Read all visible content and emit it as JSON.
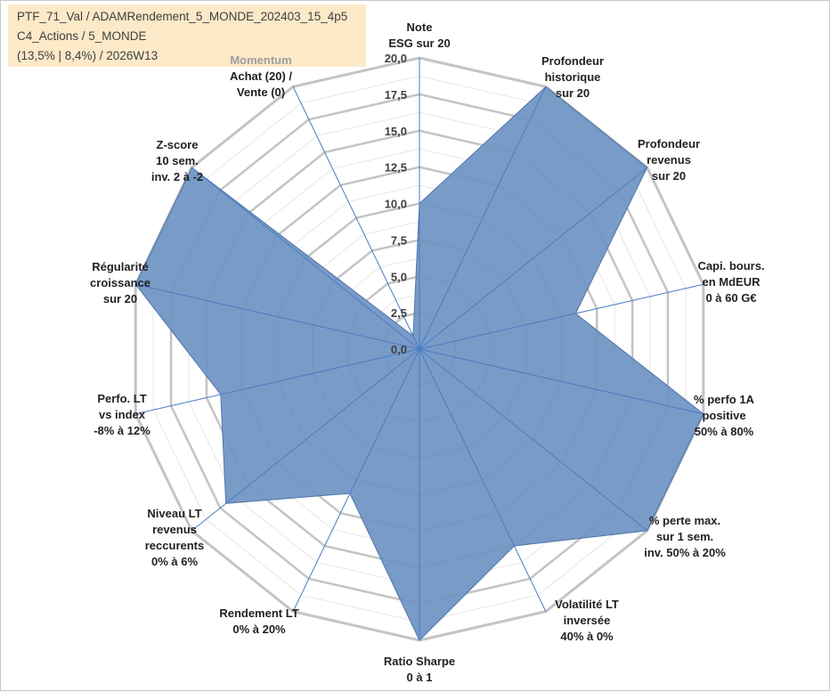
{
  "info": {
    "line1": "PTF_71_Val / ADAMRendement_5_MONDE_202403_15_4p5",
    "line2": "C4_Actions / 5_MONDE",
    "line3": "(13,5% | 8,4%) / 2026W13"
  },
  "colors": {
    "fill": "#6e93c3",
    "stroke": "#4f74aa",
    "grid": "#c4c4c4",
    "spoke": "#4a7cc4"
  },
  "chart_data": {
    "type": "radar",
    "title": "",
    "rmax": 20,
    "tick_values": [
      0,
      2.5,
      5,
      7.5,
      10,
      12.5,
      15,
      17.5,
      20
    ],
    "tick_labels": [
      "0,0",
      "2,5",
      "5,0",
      "7,5",
      "10,0",
      "12,5",
      "15,0",
      "17,5",
      "20,0"
    ],
    "axes": [
      {
        "label": [
          "Note",
          "ESG sur 20"
        ],
        "value": 10
      },
      {
        "label": [
          "Profondeur",
          "historique",
          "sur 20"
        ],
        "value": 20
      },
      {
        "label": [
          "Profondeur",
          "revenus",
          "sur 20"
        ],
        "value": 20
      },
      {
        "label": [
          "Capi. bours.",
          "en MdEUR",
          "0 à 60 G€"
        ],
        "value": 11
      },
      {
        "label": [
          "% perfo 1A",
          "positive",
          "50% à 80%"
        ],
        "value": 20
      },
      {
        "label": [
          "% perte max.",
          "sur 1 sem.",
          "inv. 50% à 20%"
        ],
        "value": 20
      },
      {
        "label": [
          "Volatilité LT",
          "inversée",
          "40% à 0%"
        ],
        "value": 15
      },
      {
        "label": [
          "Ratio Sharpe",
          "0 à 1"
        ],
        "value": 20
      },
      {
        "label": [
          "Rendement LT",
          "0% à 20%"
        ],
        "value": 11
      },
      {
        "label": [
          "Niveau LT",
          "revenus",
          "reccurents",
          "0% à 6%"
        ],
        "value": 17
      },
      {
        "label": [
          "Perfo. LT",
          "vs index",
          "-8% à 12%"
        ],
        "value": 14
      },
      {
        "label": [
          "Régularité",
          "croissance",
          "sur 20"
        ],
        "value": 20
      },
      {
        "label": [
          "Z-score",
          "10 sem.",
          "inv. 2 à -2"
        ],
        "value": 20
      },
      {
        "label": [
          "Momentum",
          "Achat (20) /",
          "Vente (0)"
        ],
        "value": 1
      }
    ]
  }
}
